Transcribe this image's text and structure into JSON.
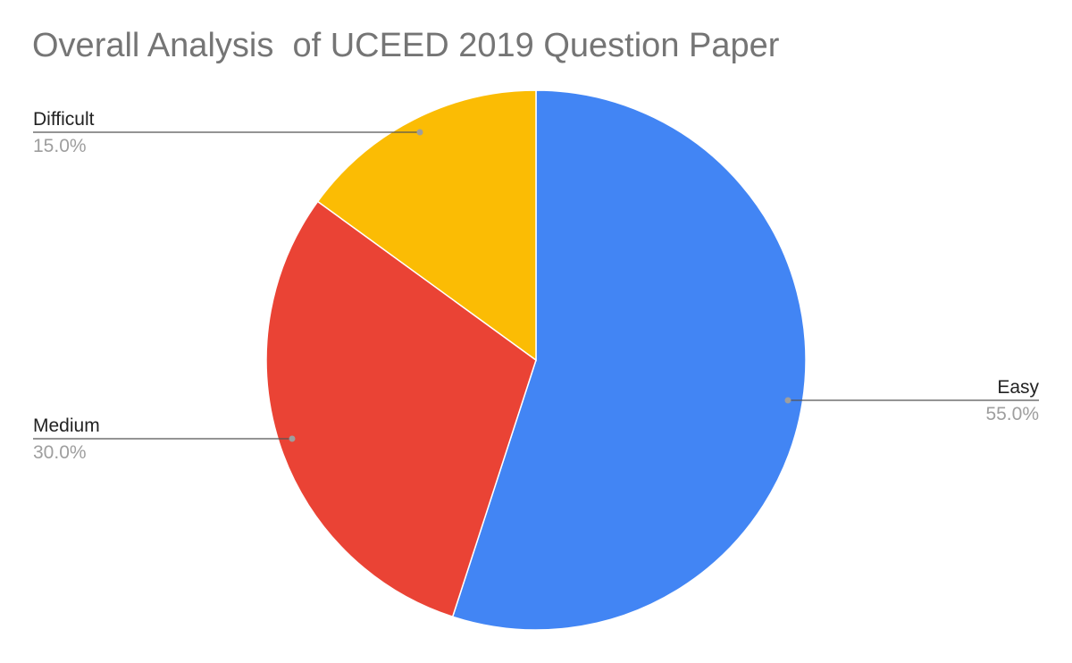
{
  "chart_data": {
    "type": "pie",
    "title": "Overall Analysis  of UCEED 2019 Question Paper",
    "slices": [
      {
        "label": "Easy",
        "value": 55.0,
        "percent_label": "55.0%",
        "color": "#4285f4"
      },
      {
        "label": "Medium",
        "value": 30.0,
        "percent_label": "30.0%",
        "color": "#ea4335"
      },
      {
        "label": "Difficult",
        "value": 15.0,
        "percent_label": "15.0%",
        "color": "#fbbc04"
      }
    ],
    "legend": "labels beside slices"
  }
}
